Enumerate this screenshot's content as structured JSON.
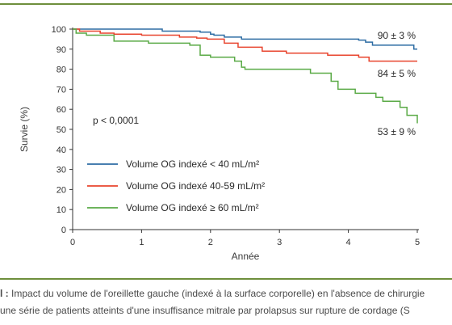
{
  "chart_data": {
    "type": "line",
    "title": "",
    "xlabel": "Année",
    "ylabel": "Survie (%)",
    "xlim": [
      0,
      5
    ],
    "ylim": [
      0,
      100
    ],
    "x_ticks": [
      0,
      1,
      2,
      3,
      4,
      5
    ],
    "y_ticks": [
      0,
      10,
      20,
      30,
      40,
      50,
      60,
      70,
      80,
      90,
      100
    ],
    "grid": false,
    "legend_position": "left",
    "annotation": "p < 0,0001",
    "series": [
      {
        "name": "Volume OG indexé < 40 mL/m²",
        "color": "#2e6da4",
        "end_label": "90 ± 3 %",
        "x": [
          0,
          0.3,
          0.5,
          0.6,
          1.0,
          1.3,
          1.4,
          1.7,
          1.85,
          2.0,
          2.05,
          2.2,
          2.45,
          3.0,
          3.5,
          3.9,
          4.15,
          4.25,
          4.35,
          4.9,
          4.95,
          5.0
        ],
        "y": [
          100,
          100,
          100,
          100,
          100,
          99,
          99,
          99,
          98.5,
          97.5,
          97,
          96,
          95,
          95,
          95,
          95,
          94.5,
          93.5,
          92,
          92,
          90,
          90
        ]
      },
      {
        "name": "Volume OG indexé 40-59 mL/m²",
        "color": "#e8442e",
        "end_label": "84 ± 5 %",
        "x": [
          0,
          0.1,
          0.4,
          0.6,
          1.0,
          1.45,
          1.55,
          1.8,
          1.95,
          2.2,
          2.4,
          2.5,
          2.75,
          3.0,
          3.1,
          3.5,
          3.7,
          4.0,
          4.15,
          4.3,
          4.5,
          5.0
        ],
        "y": [
          100,
          99,
          98,
          97.5,
          97,
          97,
          96,
          95.5,
          95,
          93,
          91,
          91,
          89,
          89,
          88,
          88,
          87,
          87,
          86,
          84,
          84,
          84
        ]
      },
      {
        "name": "Volume OG indexé ≥ 60 mL/m²",
        "color": "#5aaa46",
        "end_label": "53 ± 9 %",
        "x": [
          0,
          0.05,
          0.2,
          0.5,
          0.6,
          0.9,
          1.1,
          1.3,
          1.5,
          1.7,
          1.85,
          2.0,
          2.2,
          2.35,
          2.45,
          2.5,
          3.0,
          3.3,
          3.45,
          3.55,
          3.75,
          3.85,
          4.0,
          4.1,
          4.3,
          4.4,
          4.5,
          4.65,
          4.75,
          4.85,
          5.0
        ],
        "y": [
          100,
          98,
          97,
          97,
          94,
          94,
          93,
          93,
          93,
          92,
          87,
          86,
          86,
          84,
          81,
          80,
          80,
          80,
          78,
          78,
          74,
          70,
          70,
          68,
          68,
          66,
          64,
          64,
          61,
          57,
          53
        ]
      }
    ]
  },
  "caption": {
    "line1_prefix": "l :",
    "line1_text": "Impact du volume de l'oreillette gauche (indexé à la surface corporelle) en l'absence de chirurgie",
    "line2_text": "une série de patients atteints d'une insuffisance mitrale par prolapsus sur rupture de cordage (S"
  }
}
